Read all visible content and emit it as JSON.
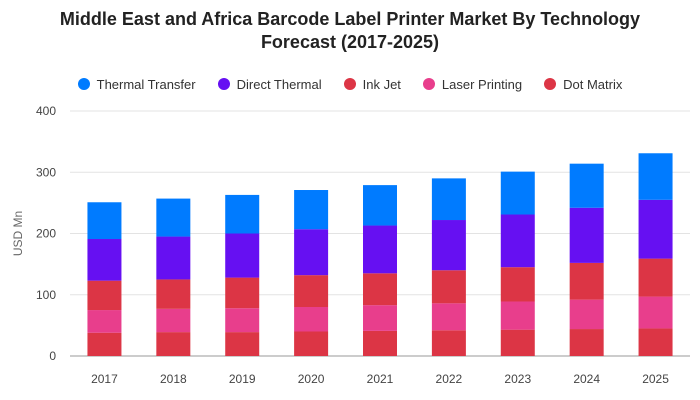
{
  "chart_data": {
    "type": "bar",
    "stacked": true,
    "title_lines": [
      "Middle East and Africa Barcode Label Printer Market By Technology",
      "Forecast (2017-2025)"
    ],
    "xlabel": "",
    "ylabel": "USD Mn",
    "ylim": [
      0,
      400
    ],
    "yticks": [
      0,
      100,
      200,
      300,
      400
    ],
    "grid": true,
    "legend_position": "top",
    "categories": [
      "2017",
      "2018",
      "2019",
      "2020",
      "2021",
      "2022",
      "2023",
      "2024",
      "2025"
    ],
    "series": [
      {
        "name": "Dot Matrix",
        "color": "#dc3545",
        "values": [
          38,
          39,
          39,
          40,
          41,
          42,
          43,
          44,
          45
        ]
      },
      {
        "name": "Laser Printing",
        "color": "#e83e8c",
        "values": [
          37,
          38,
          39,
          40,
          42,
          44,
          46,
          48,
          52
        ]
      },
      {
        "name": "Ink Jet",
        "color": "#dc3545",
        "values": [
          48,
          48,
          50,
          52,
          52,
          54,
          56,
          60,
          62
        ]
      },
      {
        "name": "Direct Thermal",
        "color": "#6610f2",
        "values": [
          68,
          70,
          72,
          75,
          78,
          82,
          86,
          90,
          96
        ]
      },
      {
        "name": "Thermal Transfer",
        "color": "#007bff",
        "values": [
          60,
          62,
          63,
          64,
          66,
          68,
          70,
          72,
          76
        ]
      }
    ],
    "legend_order": [
      "Thermal Transfer",
      "Direct Thermal",
      "Ink Jet",
      "Laser Printing",
      "Dot Matrix"
    ]
  }
}
